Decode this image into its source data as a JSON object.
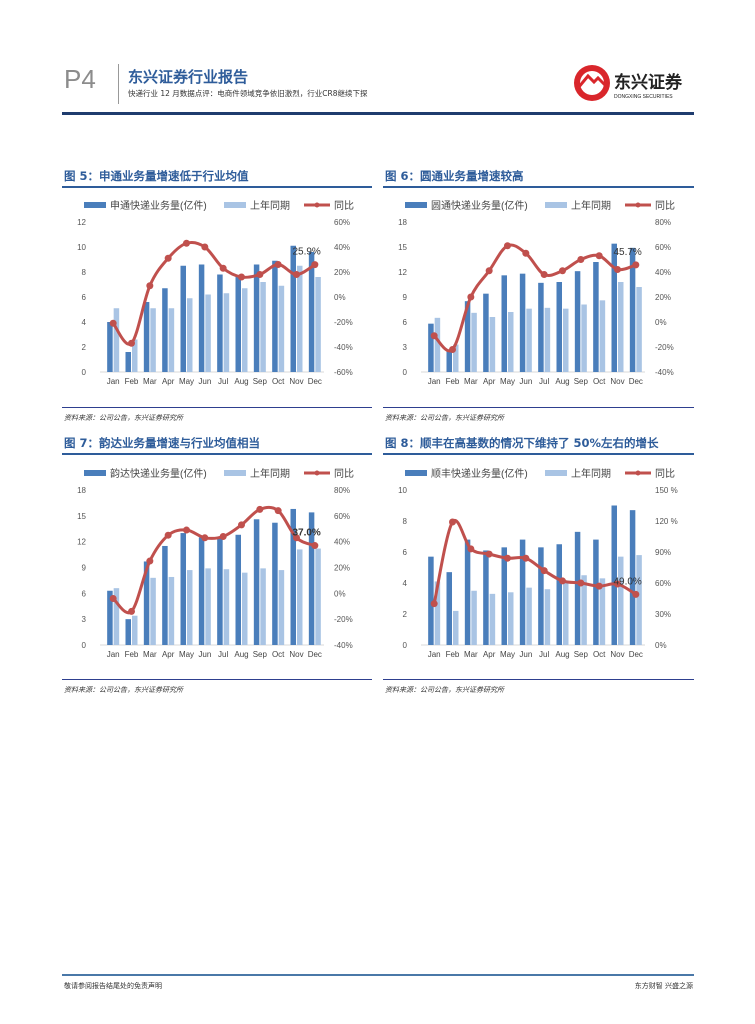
{
  "header": {
    "page": "P4",
    "report_title": "东兴证券行业报告",
    "subtitle": "快递行业 12 月数据点评：电商件领域竞争依旧激烈，行业CR8继续下探",
    "logo_cn": "东兴证券",
    "logo_en": "DONGXING SECURITIES"
  },
  "charts_meta": [
    {
      "title": "图 5：申通业务量增速低于行业均值",
      "source": "资料来源：公司公告，东兴证券研究所"
    },
    {
      "title": "图 6：圆通业务量增速较高",
      "source": "资料来源：公司公告，东兴证券研究所"
    },
    {
      "title": "图 7：韵达业务量增速与行业均值相当",
      "source": "资料来源：公司公告，东兴证券研究所"
    },
    {
      "title": "图 8：顺丰在高基数的情况下维持了 50%左右的增长",
      "source": "资料来源：公司公告，东兴证券研究所"
    }
  ],
  "footer": {
    "left": "敬请参阅报告结尾处的免责声明",
    "right": "东方财智 兴盛之源"
  },
  "colors": {
    "bar": "#4a7ebb",
    "bar_prev": "#a9c4e4",
    "line": "#c0504d",
    "title": "#2e5c9a"
  },
  "chart_data": [
    {
      "type": "bar+line",
      "title": "图 5：申通业务量增速低于行业均值",
      "categories": [
        "Jan",
        "Feb",
        "Mar",
        "Apr",
        "May",
        "Jun",
        "Jul",
        "Aug",
        "Sep",
        "Oct",
        "Nov",
        "Dec"
      ],
      "series": [
        {
          "name": "申通快递业务量(亿件)",
          "type": "bar",
          "axis": "left",
          "values": [
            4.0,
            1.6,
            5.6,
            6.7,
            8.5,
            8.6,
            7.8,
            7.6,
            8.6,
            8.9,
            10.1,
            9.6
          ]
        },
        {
          "name": "上年同期",
          "type": "bar",
          "axis": "left",
          "values": [
            5.1,
            2.6,
            5.1,
            5.1,
            5.9,
            6.2,
            6.3,
            6.7,
            7.2,
            6.9,
            8.5,
            7.6
          ]
        },
        {
          "name": "同比",
          "type": "line",
          "axis": "right",
          "values": [
            -21,
            -37,
            9,
            31,
            43,
            40,
            23,
            16,
            18,
            26,
            18,
            25.9
          ]
        }
      ],
      "yleft": {
        "min": 0,
        "max": 12,
        "ticks": [
          "0",
          "2",
          "4",
          "6",
          "8",
          "10",
          "12"
        ]
      },
      "yright": {
        "min": -60,
        "max": 60,
        "ticks": [
          "-60%",
          "-40%",
          "-20%",
          "0%",
          "20%",
          "40%",
          "60%"
        ]
      },
      "annotation": "25.9%"
    },
    {
      "type": "bar+line",
      "title": "图 6：圆通业务量增速较高",
      "categories": [
        "Jan",
        "Feb",
        "Mar",
        "Apr",
        "May",
        "Jun",
        "Jul",
        "Aug",
        "Sep",
        "Oct",
        "Nov",
        "Dec"
      ],
      "series": [
        {
          "name": "圆通快递业务量(亿件)",
          "type": "bar",
          "axis": "left",
          "values": [
            5.8,
            2.6,
            8.5,
            9.4,
            11.6,
            11.8,
            10.7,
            10.8,
            12.1,
            13.2,
            15.4,
            14.9
          ]
        },
        {
          "name": "上年同期",
          "type": "bar",
          "axis": "left",
          "values": [
            6.5,
            3.3,
            7.1,
            6.6,
            7.2,
            7.6,
            7.7,
            7.6,
            8.1,
            8.6,
            10.8,
            10.2
          ]
        },
        {
          "name": "同比",
          "type": "line",
          "axis": "right",
          "values": [
            -11,
            -22,
            20,
            41,
            61,
            55,
            38,
            41,
            50,
            53,
            42,
            45.7
          ]
        }
      ],
      "yleft": {
        "min": 0,
        "max": 18,
        "ticks": [
          "0",
          "3",
          "6",
          "9",
          "12",
          "15",
          "18"
        ]
      },
      "yright": {
        "min": -40,
        "max": 80,
        "ticks": [
          "-40%",
          "-20%",
          "0%",
          "20%",
          "40%",
          "60%",
          "80%"
        ]
      },
      "annotation": "45.7%"
    },
    {
      "type": "bar+line",
      "title": "图 7：韵达业务量增速与行业均值相当",
      "categories": [
        "Jan",
        "Feb",
        "Mar",
        "Apr",
        "May",
        "Jun",
        "Jul",
        "Aug",
        "Sep",
        "Oct",
        "Nov",
        "Dec"
      ],
      "series": [
        {
          "name": "韵达快递业务量(亿件)",
          "type": "bar",
          "axis": "left",
          "values": [
            6.3,
            3.0,
            9.7,
            11.5,
            13.0,
            12.5,
            12.5,
            12.8,
            14.6,
            14.2,
            15.8,
            15.4
          ]
        },
        {
          "name": "上年同期",
          "type": "bar",
          "axis": "left",
          "values": [
            6.6,
            3.4,
            7.8,
            7.9,
            8.7,
            8.9,
            8.8,
            8.4,
            8.9,
            8.7,
            11.1,
            11.2
          ]
        },
        {
          "name": "同比",
          "type": "line",
          "axis": "right",
          "values": [
            -4,
            -14,
            25,
            45,
            49,
            43,
            44,
            53,
            65,
            64,
            43,
            37.0
          ]
        }
      ],
      "yleft": {
        "min": 0,
        "max": 18,
        "ticks": [
          "0",
          "3",
          "6",
          "9",
          "12",
          "15",
          "18"
        ]
      },
      "yright": {
        "min": -40,
        "max": 80,
        "ticks": [
          "-40%",
          "-20%",
          "0%",
          "20%",
          "40%",
          "60%",
          "80%"
        ]
      },
      "annotation": "37.0%"
    },
    {
      "type": "bar+line",
      "title": "图 8：顺丰在高基数的情况下维持了 50%左右的增长",
      "categories": [
        "Jan",
        "Feb",
        "Mar",
        "Apr",
        "May",
        "Jun",
        "Jul",
        "Aug",
        "Sep",
        "Oct",
        "Nov",
        "Dec"
      ],
      "series": [
        {
          "name": "顺丰快递业务量(亿件)",
          "type": "bar",
          "axis": "left",
          "values": [
            5.7,
            4.7,
            6.8,
            6.1,
            6.3,
            6.8,
            6.3,
            6.5,
            7.3,
            6.8,
            9.0,
            8.7
          ]
        },
        {
          "name": "上年同期",
          "type": "bar",
          "axis": "left",
          "values": [
            4.1,
            2.2,
            3.5,
            3.3,
            3.4,
            3.7,
            3.6,
            4.0,
            4.5,
            4.3,
            5.7,
            5.8
          ]
        },
        {
          "name": "同比",
          "type": "line",
          "axis": "right",
          "values": [
            40,
            119,
            93,
            88,
            84,
            84,
            72,
            62,
            60,
            57,
            59,
            49.0
          ]
        }
      ],
      "yleft": {
        "min": 0,
        "max": 10,
        "ticks": [
          "0",
          "2",
          "4",
          "6",
          "8",
          "10"
        ]
      },
      "yright": {
        "min": 0,
        "max": 150,
        "ticks": [
          "0%",
          "30%",
          "60%",
          "90%",
          "120 %",
          "150 %"
        ]
      },
      "annotation": "49.0%"
    }
  ]
}
